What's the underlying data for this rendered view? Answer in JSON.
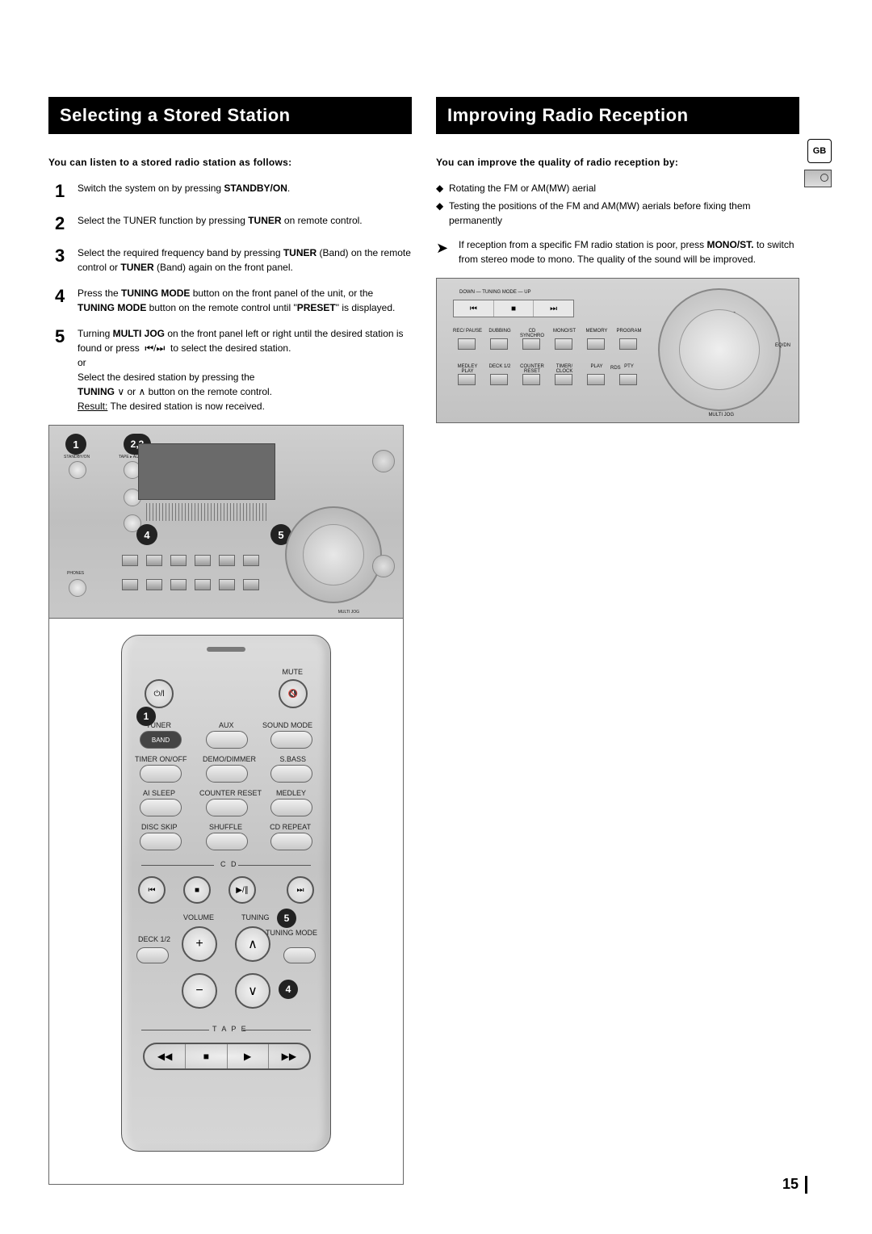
{
  "page_number": "15",
  "gb_badge": "GB",
  "left": {
    "title": "Selecting a Stored Station",
    "intro": "You can listen to a stored radio station as follows:",
    "steps": [
      {
        "n": "1",
        "html": "Switch the system on by pressing <b>STANDBY/ON</b>."
      },
      {
        "n": "2",
        "html": "Select the TUNER function by pressing <b>TUNER</b> on remote control."
      },
      {
        "n": "3",
        "html": "Select the required frequency band by pressing <b>TUNER</b> (Band) on the remote control or <b>TUNER</b> (Band) again on the front panel."
      },
      {
        "n": "4",
        "html": "Press the <b>TUNING MODE</b> button on the front panel of the unit, or the <b>TUNING MODE</b> button on the remote control until \"<b>PRESET</b>\" is displayed."
      },
      {
        "n": "5",
        "html": "Turning <b>MULTI JOG</b> on the front panel left or right until the desired station is found or press &nbsp;⏮/⏭&nbsp; to select the desired station.<br>or<br>Select the desired station by pressing the<br><b>TUNING</b> ∨ or ∧ button on the remote control.<br><u>Result:</u> The desired station is now received."
      }
    ],
    "unit_callouts": {
      "c1": "1",
      "c23": "2,3",
      "c4": "4",
      "c5": "5"
    },
    "remote_callouts": {
      "c1": "1",
      "c5": "5",
      "c4": "4"
    },
    "remote": {
      "mute": "MUTE",
      "tuner": "TUNER",
      "aux": "AUX",
      "soundmode": "SOUND MODE",
      "band": "BAND",
      "timer_onoff": "TIMER ON/OFF",
      "demo_dimmer": "DEMO/DIMMER",
      "sbass": "S.BASS",
      "ai_sleep": "AI SLEEP",
      "counter_reset": "COUNTER RESET",
      "medley": "MEDLEY",
      "disc_skip": "DISC SKIP",
      "shuffle": "SHUFFLE",
      "cd_repeat": "CD REPEAT",
      "cd": "C D",
      "volume": "VOLUME",
      "tuning": "TUNING",
      "deck12": "DECK 1/2",
      "tuning_mode": "TUNING MODE",
      "tape": "T A P E",
      "glyphs": {
        "power": "⏻/l",
        "mute_icon": "🔇",
        "prev": "⏮",
        "stop": "■",
        "play": "▶/∥",
        "next": "⏭",
        "plus": "+",
        "minus": "−",
        "up": "∧",
        "down": "∨",
        "rew": "◀◀",
        "tstop": "■",
        "tplay": "▶",
        "ff": "▶▶"
      }
    }
  },
  "right": {
    "title": "Improving Radio Reception",
    "intro": "You can improve the quality of radio reception by:",
    "bullets": [
      "Rotating the FM or AM(MW) aerial",
      "Testing the positions of the FM and AM(MW) aerials before fixing them permanently"
    ],
    "tip": "If reception from a specific FM radio station is poor, press <b>MONO/ST.</b> to switch from stereo mode to mono. The quality of the sound will be improved.",
    "tip_icon": "➤",
    "bullet_icon": "◆",
    "panel": {
      "tuning_mode": "DOWN — TUNING MODE — UP",
      "prev": "⏮",
      "stop": "■",
      "next": "⏭",
      "row1": [
        "REC/ PAUSE",
        "DUBBING",
        "CD SYNCHRO",
        "MONO/ST",
        "MEMORY",
        "PROGRAM"
      ],
      "row2": [
        "MEDLEY PLAY",
        "DECK 1/2",
        "COUNTER RESET",
        "TIMER/ CLOCK",
        "PLAY",
        "PTY"
      ],
      "rds": "RDS",
      "multi_jog": "MULTI JOG",
      "eq_dn": "EQ/DN"
    }
  }
}
